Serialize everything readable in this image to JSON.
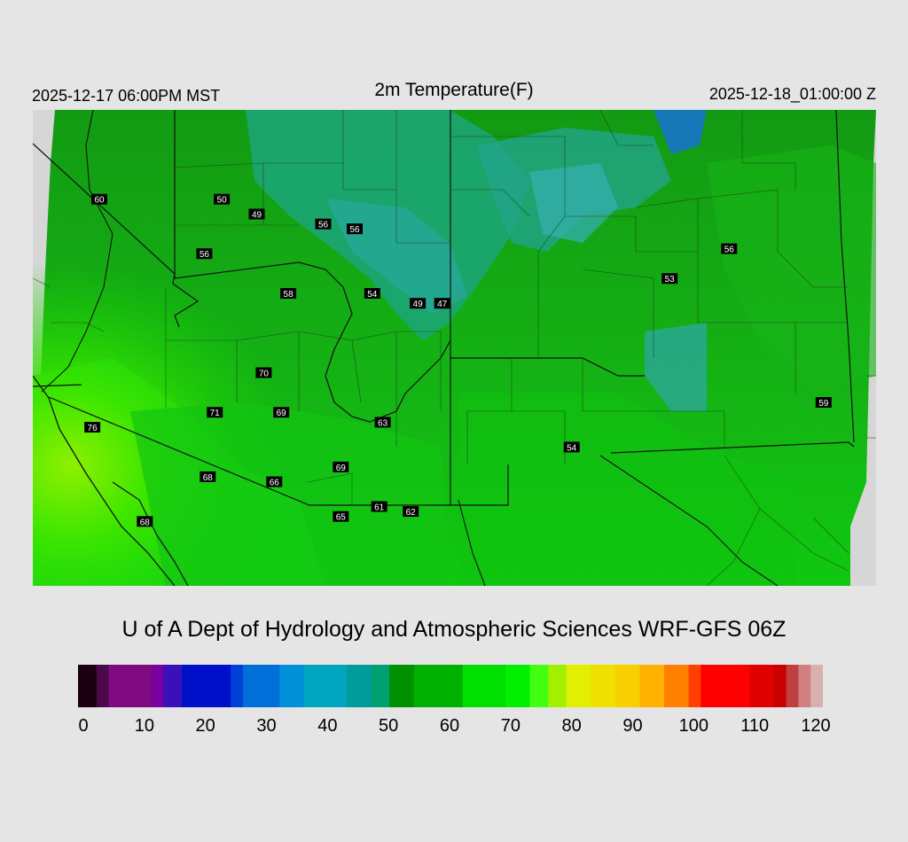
{
  "header": {
    "valid_local": "2025-12-17 06:00PM MST",
    "title": "2m Temperature(F)",
    "valid_utc": "2025-12-18_01:00:00 Z"
  },
  "footer": {
    "credit": "U of A Dept of Hydrology and Atmospheric Sciences WRF-GFS 06Z"
  },
  "colorbar": {
    "min": 0,
    "max": 122,
    "ticks": [
      "0",
      "10",
      "20",
      "30",
      "40",
      "50",
      "60",
      "70",
      "80",
      "90",
      "100",
      "110",
      "120"
    ],
    "stops": [
      [
        0,
        "#1a0010"
      ],
      [
        3,
        "#4a0a4a"
      ],
      [
        5,
        "#800a80"
      ],
      [
        12,
        "#7a00a0"
      ],
      [
        14,
        "#3a10b8"
      ],
      [
        17,
        "#0010c8"
      ],
      [
        25,
        "#0040d8"
      ],
      [
        27,
        "#0070d8"
      ],
      [
        33,
        "#0090d8"
      ],
      [
        37,
        "#00a6c0"
      ],
      [
        44,
        "#009c9c"
      ],
      [
        48,
        "#00a070"
      ],
      [
        51,
        "#009000"
      ],
      [
        55,
        "#00b000"
      ],
      [
        63,
        "#00e000"
      ],
      [
        70,
        "#00f000"
      ],
      [
        74,
        "#40ff10"
      ],
      [
        77,
        "#a0f000"
      ],
      [
        80,
        "#e0f000"
      ],
      [
        84,
        "#f0e000"
      ],
      [
        88,
        "#f8d000"
      ],
      [
        92,
        "#ffb000"
      ],
      [
        96,
        "#ff8000"
      ],
      [
        100,
        "#ff4000"
      ],
      [
        102,
        "#ff0000"
      ],
      [
        110,
        "#e00000"
      ],
      [
        114,
        "#c80000"
      ],
      [
        116,
        "#c04040"
      ],
      [
        118,
        "#d08080"
      ],
      [
        120,
        "#d8b0b0"
      ],
      [
        122,
        "#dddddd"
      ]
    ]
  },
  "station_labels": [
    {
      "value": "60",
      "lon": -118.7,
      "lat": 37.8
    },
    {
      "value": "50",
      "lon": -115.2,
      "lat": 37.8
    },
    {
      "value": "49",
      "lon": -114.2,
      "lat": 37.5
    },
    {
      "value": "56",
      "lon": -112.3,
      "lat": 37.3
    },
    {
      "value": "56",
      "lon": -111.4,
      "lat": 37.2
    },
    {
      "value": "56",
      "lon": -115.7,
      "lat": 36.7
    },
    {
      "value": "58",
      "lon": -113.3,
      "lat": 35.9
    },
    {
      "value": "54",
      "lon": -110.9,
      "lat": 35.9
    },
    {
      "value": "49",
      "lon": -109.6,
      "lat": 35.7
    },
    {
      "value": "47",
      "lon": -108.9,
      "lat": 35.7
    },
    {
      "value": "56",
      "lon": -100.7,
      "lat": 36.8
    },
    {
      "value": "53",
      "lon": -102.4,
      "lat": 36.2
    },
    {
      "value": "70",
      "lon": -114.0,
      "lat": 34.3
    },
    {
      "value": "71",
      "lon": -115.4,
      "lat": 33.5
    },
    {
      "value": "69",
      "lon": -113.5,
      "lat": 33.5
    },
    {
      "value": "63",
      "lon": -110.6,
      "lat": 33.3
    },
    {
      "value": "54",
      "lon": -105.2,
      "lat": 32.8
    },
    {
      "value": "59",
      "lon": -98.0,
      "lat": 33.7
    },
    {
      "value": "76",
      "lon": -118.9,
      "lat": 33.2
    },
    {
      "value": "68",
      "lon": -115.6,
      "lat": 32.2
    },
    {
      "value": "66",
      "lon": -113.7,
      "lat": 32.1
    },
    {
      "value": "69",
      "lon": -111.8,
      "lat": 32.4
    },
    {
      "value": "61",
      "lon": -110.7,
      "lat": 31.6
    },
    {
      "value": "65",
      "lon": -111.8,
      "lat": 31.4
    },
    {
      "value": "62",
      "lon": -109.8,
      "lat": 31.5
    },
    {
      "value": "68",
      "lon": -117.4,
      "lat": 31.3
    }
  ]
}
